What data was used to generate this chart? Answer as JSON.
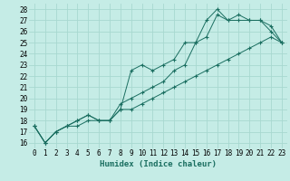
{
  "xlabel": "Humidex (Indice chaleur)",
  "background_color": "#c5ece6",
  "grid_color": "#a8d8d0",
  "line_color": "#1a6e60",
  "xlim": [
    -0.5,
    23.5
  ],
  "ylim": [
    15.5,
    28.5
  ],
  "xticks": [
    0,
    1,
    2,
    3,
    4,
    5,
    6,
    7,
    8,
    9,
    10,
    11,
    12,
    13,
    14,
    15,
    16,
    17,
    18,
    19,
    20,
    21,
    22,
    23
  ],
  "yticks": [
    16,
    17,
    18,
    19,
    20,
    21,
    22,
    23,
    24,
    25,
    26,
    27,
    28
  ],
  "line1_x": [
    0,
    1,
    2,
    3,
    4,
    5,
    6,
    7,
    8,
    9,
    10,
    11,
    12,
    13,
    14,
    15,
    16,
    17,
    18,
    19,
    20,
    21,
    22,
    23
  ],
  "line1_y": [
    17.5,
    16.0,
    17.0,
    17.5,
    17.5,
    18.0,
    18.0,
    18.0,
    19.0,
    22.5,
    23.0,
    22.5,
    23.0,
    23.5,
    25.0,
    25.0,
    27.0,
    28.0,
    27.0,
    27.5,
    27.0,
    27.0,
    26.5,
    25.0
  ],
  "line2_x": [
    0,
    1,
    2,
    3,
    4,
    5,
    6,
    7,
    8,
    9,
    10,
    11,
    12,
    13,
    14,
    15,
    16,
    17,
    18,
    19,
    20,
    21,
    22,
    23
  ],
  "line2_y": [
    17.5,
    16.0,
    17.0,
    17.5,
    18.0,
    18.5,
    18.0,
    18.0,
    19.5,
    20.0,
    20.5,
    21.0,
    21.5,
    22.5,
    23.0,
    25.0,
    25.5,
    27.5,
    27.0,
    27.0,
    27.0,
    27.0,
    26.0,
    25.0
  ],
  "line3_x": [
    0,
    1,
    2,
    3,
    4,
    5,
    6,
    7,
    8,
    9,
    10,
    11,
    12,
    13,
    14,
    15,
    16,
    17,
    18,
    19,
    20,
    21,
    22,
    23
  ],
  "line3_y": [
    17.5,
    16.0,
    17.0,
    17.5,
    18.0,
    18.5,
    18.0,
    18.0,
    19.0,
    19.0,
    19.5,
    20.0,
    20.5,
    21.0,
    21.5,
    22.0,
    22.5,
    23.0,
    23.5,
    24.0,
    24.5,
    25.0,
    25.5,
    25.0
  ],
  "tick_fontsize": 5.5,
  "label_fontsize": 6.5
}
